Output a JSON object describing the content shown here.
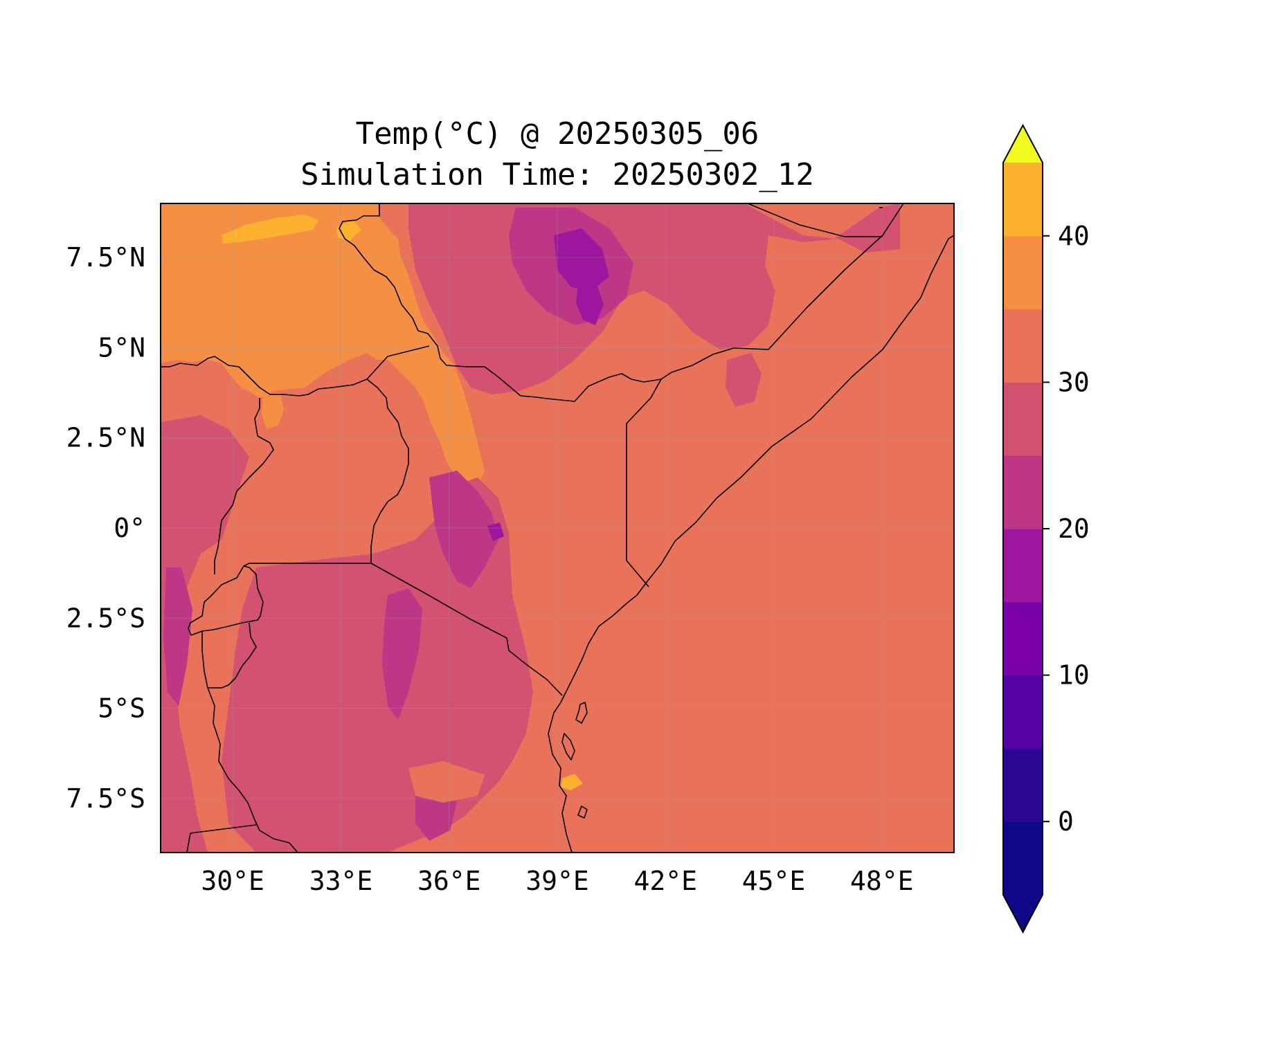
{
  "title": {
    "line1": "Temp(°C) @ 20250305_06",
    "line2": "Simulation Time: 20250302_12"
  },
  "map": {
    "extent_lon": [
      28.0,
      50.0
    ],
    "extent_lat": [
      -9.0,
      9.0
    ],
    "x_ticks": [
      {
        "value": 30,
        "label": "30°E"
      },
      {
        "value": 33,
        "label": "33°E"
      },
      {
        "value": 36,
        "label": "36°E"
      },
      {
        "value": 39,
        "label": "39°E"
      },
      {
        "value": 42,
        "label": "42°E"
      },
      {
        "value": 45,
        "label": "45°E"
      },
      {
        "value": 48,
        "label": "48°E"
      }
    ],
    "y_ticks": [
      {
        "value": 7.5,
        "label": "7.5°N"
      },
      {
        "value": 5,
        "label": "5°N"
      },
      {
        "value": 2.5,
        "label": "2.5°N"
      },
      {
        "value": 0,
        "label": "0°"
      },
      {
        "value": -2.5,
        "label": "2.5°S"
      },
      {
        "value": -5,
        "label": "5°S"
      },
      {
        "value": -7.5,
        "label": "7.5°S"
      }
    ],
    "grid": true,
    "background_color": "#e8735a"
  },
  "colorbar": {
    "levels": [
      -5,
      0,
      5,
      10,
      15,
      20,
      25,
      30,
      35,
      40,
      45
    ],
    "colors": [
      "#0d0887",
      "#2c0594",
      "#5402a3",
      "#7b02a8",
      "#9c179e",
      "#bd3786",
      "#d35171",
      "#e8735a",
      "#f48f44",
      "#fdb22f",
      "#f3e424"
    ],
    "under_color": "#0d0887",
    "over_color": "#f0f921",
    "tick_values": [
      0,
      10,
      20,
      30,
      40
    ],
    "tick_labels": [
      "0",
      "10",
      "20",
      "30",
      "40"
    ],
    "extend": "both"
  }
}
